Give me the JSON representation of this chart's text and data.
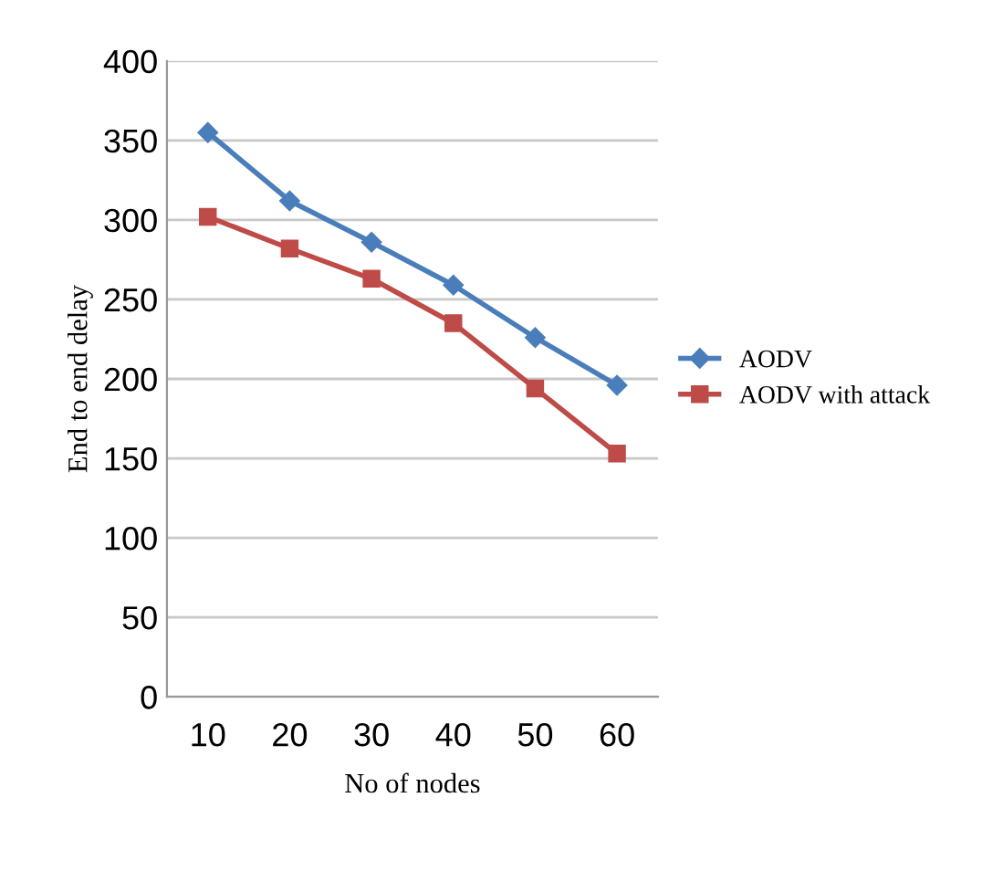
{
  "chart_data": {
    "type": "line",
    "xlabel": "No of nodes",
    "ylabel": "End to end delay",
    "categories": [
      "10",
      "20",
      "30",
      "40",
      "50",
      "60"
    ],
    "series": [
      {
        "name": "AODV",
        "color": "#4a7ebb",
        "marker": "diamond",
        "values": [
          355,
          312,
          286,
          259,
          226,
          196
        ]
      },
      {
        "name": "AODV with attack",
        "color": "#be4b48",
        "marker": "square",
        "values": [
          302,
          282,
          263,
          235,
          194,
          153
        ]
      }
    ],
    "ylim": [
      0,
      400
    ],
    "yticks": [
      0,
      50,
      100,
      150,
      200,
      250,
      300,
      350,
      400
    ],
    "grid": "y",
    "legend": "right"
  }
}
